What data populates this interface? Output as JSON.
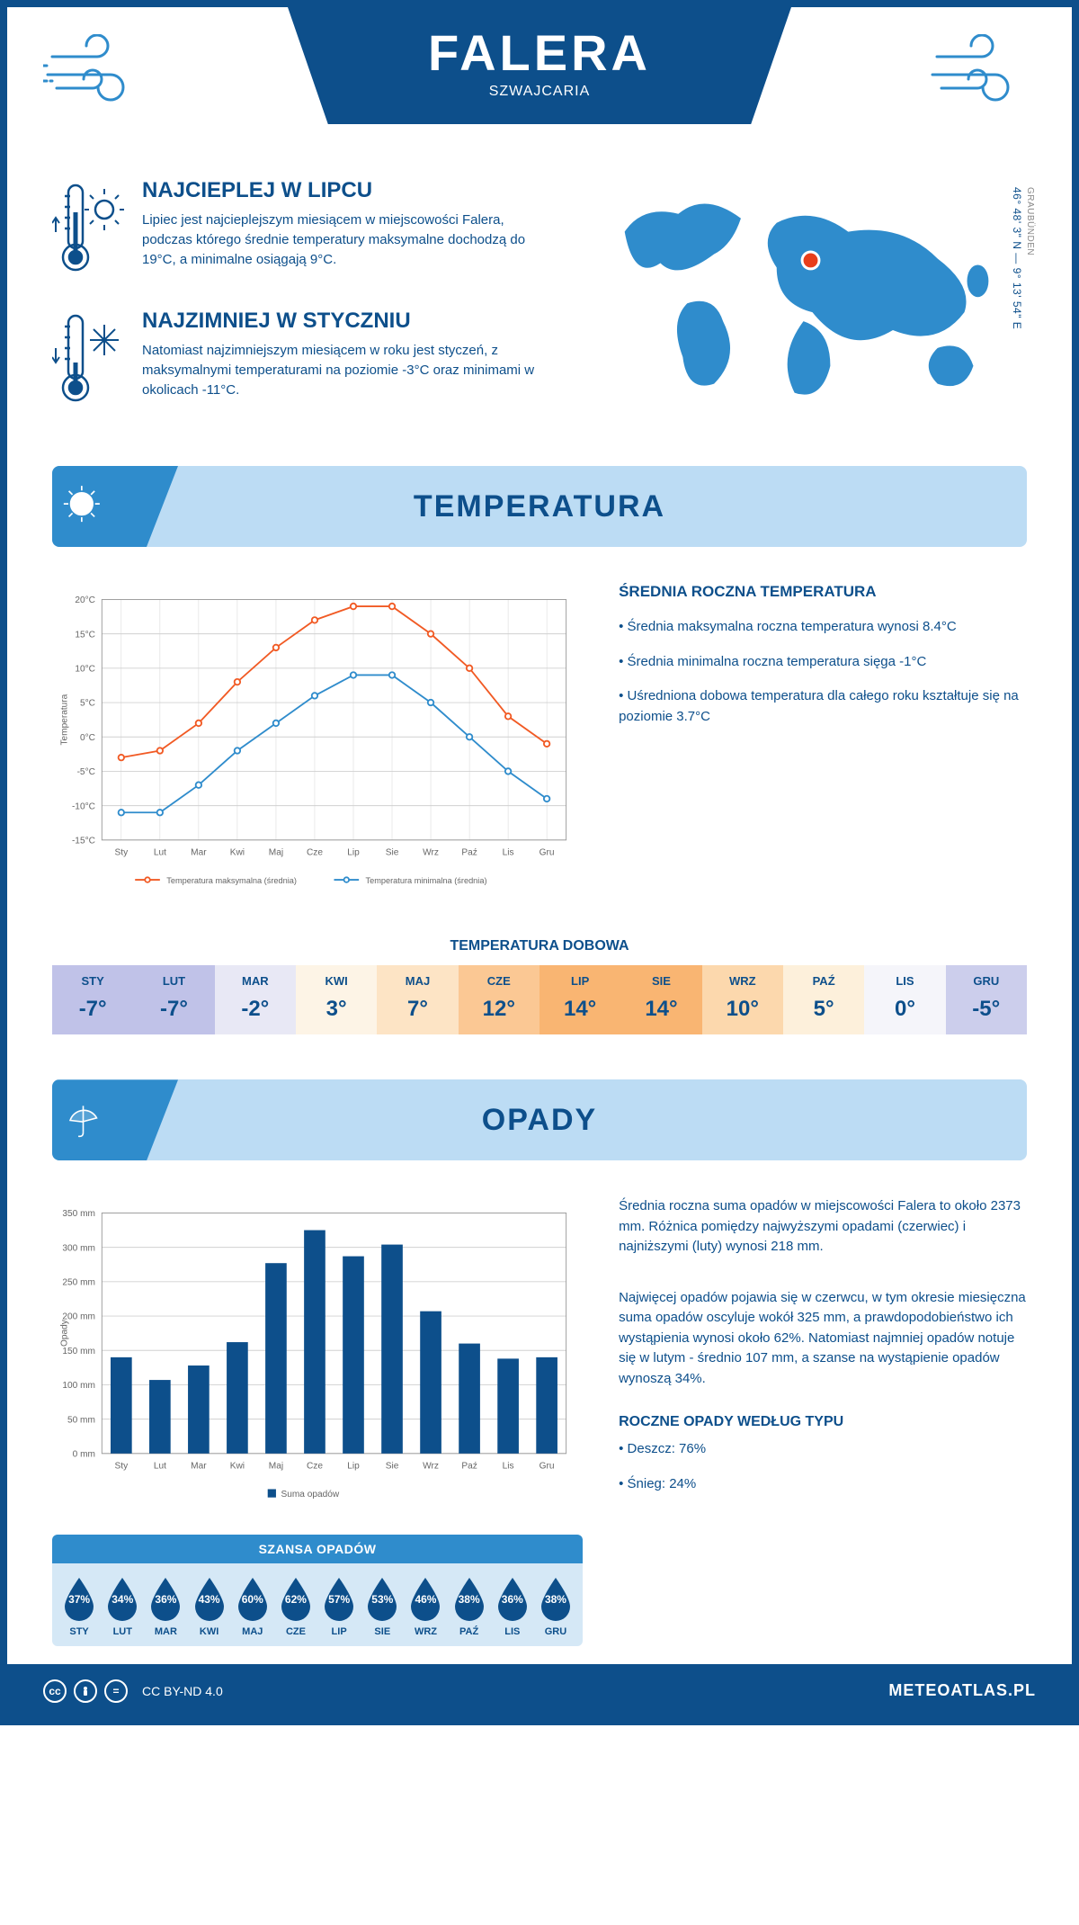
{
  "colors": {
    "primary": "#0d4f8b",
    "secondary": "#2f8ccc",
    "light": "#bcdcf4",
    "lighter": "#d5e8f6",
    "orange": "#f15a24",
    "blue_line": "#2f8ccc",
    "grid": "#d0d0d0",
    "marker": "#e83e1b"
  },
  "header": {
    "title": "FALERA",
    "subtitle": "SZWAJCARIA"
  },
  "coords": {
    "lat": "46° 48' 3\" N",
    "lon": "9° 13' 54\" E",
    "region": "GRAUBÜNDEN"
  },
  "warmest": {
    "title": "NAJCIEPLEJ W LIPCU",
    "text": "Lipiec jest najcieplejszym miesiącem w miejscowości Falera, podczas którego średnie temperatury maksymalne dochodzą do 19°C, a minimalne osiągają 9°C."
  },
  "coldest": {
    "title": "NAJZIMNIEJ W STYCZNIU",
    "text": "Natomiast najzimniejszym miesiącem w roku jest styczeń, z maksymalnymi temperaturami na poziomie -3°C oraz minimami w okolicach -11°C."
  },
  "temp_section": {
    "title": "TEMPERATURA",
    "side_title": "ŚREDNIA ROCZNA TEMPERATURA",
    "side_p1": "• Średnia maksymalna roczna temperatura wynosi 8.4°C",
    "side_p2": "• Średnia minimalna roczna temperatura sięga -1°C",
    "side_p3": "• Uśredniona dobowa temperatura dla całego roku kształtuje się na poziomie 3.7°C"
  },
  "temp_chart": {
    "months": [
      "Sty",
      "Lut",
      "Mar",
      "Kwi",
      "Maj",
      "Cze",
      "Lip",
      "Sie",
      "Wrz",
      "Paź",
      "Lis",
      "Gru"
    ],
    "max": [
      -3,
      -2,
      2,
      8,
      13,
      17,
      19,
      19,
      15,
      10,
      3,
      -1
    ],
    "min": [
      -11,
      -11,
      -7,
      -2,
      2,
      6,
      9,
      9,
      5,
      0,
      -5,
      -9
    ],
    "ylim": [
      -15,
      20
    ],
    "ytick": 5,
    "ylabel": "Temperatura",
    "legend_max": "Temperatura maksymalna (średnia)",
    "legend_min": "Temperatura minimalna (średnia)",
    "max_color": "#f15a24",
    "min_color": "#2f8ccc"
  },
  "daily": {
    "title": "TEMPERATURA DOBOWA",
    "months": [
      "STY",
      "LUT",
      "MAR",
      "KWI",
      "MAJ",
      "CZE",
      "LIP",
      "SIE",
      "WRZ",
      "PAŹ",
      "LIS",
      "GRU"
    ],
    "values": [
      "-7°",
      "-7°",
      "-2°",
      "3°",
      "7°",
      "12°",
      "14°",
      "14°",
      "10°",
      "5°",
      "0°",
      "-5°"
    ],
    "bg": [
      "#c0c2e8",
      "#c0c2e8",
      "#e8e8f5",
      "#fdf4e6",
      "#fde4c5",
      "#fbc894",
      "#f9b572",
      "#f9b572",
      "#fcd8ad",
      "#fdf0db",
      "#f5f5fa",
      "#ccceec"
    ]
  },
  "precip_section": {
    "title": "OPADY",
    "p1": "Średnia roczna suma opadów w miejscowości Falera to około 2373 mm. Różnica pomiędzy najwyższymi opadami (czerwiec) i najniższymi (luty) wynosi 218 mm.",
    "p2": "Najwięcej opadów pojawia się w czerwcu, w tym okresie miesięczna suma opadów oscyluje wokół 325 mm, a prawdopodobieństwo ich wystąpienia wynosi około 62%. Natomiast najmniej opadów notuje się w lutym - średnio 107 mm, a szanse na wystąpienie opadów wynoszą 34%.",
    "type_title": "ROCZNE OPADY WEDŁUG TYPU",
    "type_rain": "• Deszcz: 76%",
    "type_snow": "• Śnieg: 24%"
  },
  "precip_chart": {
    "months": [
      "Sty",
      "Lut",
      "Mar",
      "Kwi",
      "Maj",
      "Cze",
      "Lip",
      "Sie",
      "Wrz",
      "Paź",
      "Lis",
      "Gru"
    ],
    "values": [
      140,
      107,
      128,
      162,
      277,
      325,
      287,
      304,
      207,
      160,
      138,
      140
    ],
    "ylim": [
      0,
      350
    ],
    "ytick": 50,
    "ylabel": "Opady",
    "legend": "Suma opadów",
    "bar_color": "#0d4f8b"
  },
  "chance": {
    "title": "SZANSA OPADÓW",
    "months": [
      "STY",
      "LUT",
      "MAR",
      "KWI",
      "MAJ",
      "CZE",
      "LIP",
      "SIE",
      "WRZ",
      "PAŹ",
      "LIS",
      "GRU"
    ],
    "values": [
      "37%",
      "34%",
      "36%",
      "43%",
      "60%",
      "62%",
      "57%",
      "53%",
      "46%",
      "38%",
      "36%",
      "38%"
    ]
  },
  "footer": {
    "license": "CC BY-ND 4.0",
    "site": "METEOATLAS.PL"
  }
}
